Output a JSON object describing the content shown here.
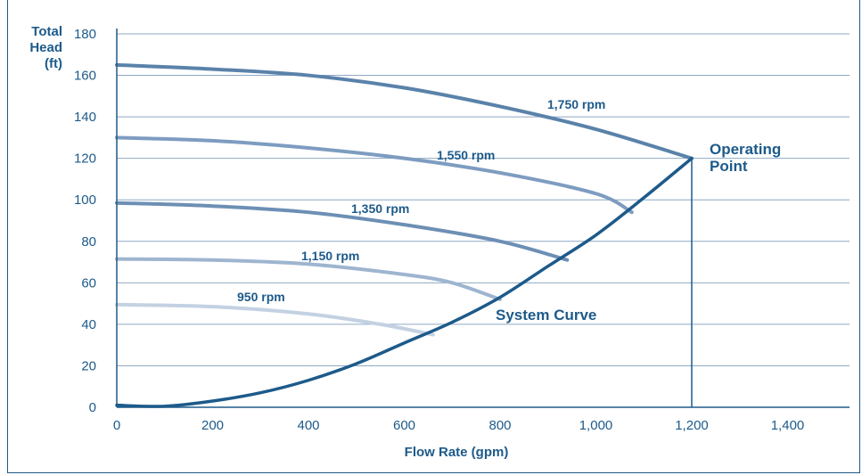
{
  "chart_data": {
    "type": "line",
    "xlabel": "Flow Rate (gpm)",
    "ylabel_lines": [
      "Total",
      "Head",
      "(ft)"
    ],
    "xlim": [
      0,
      1500
    ],
    "ylim": [
      0,
      180
    ],
    "x_ticks": [
      0,
      200,
      400,
      600,
      800,
      1000,
      1200,
      1400
    ],
    "x_tick_labels": [
      "0",
      "200",
      "400",
      "600",
      "800",
      "1,000",
      "1,200",
      "1,400"
    ],
    "y_ticks": [
      0,
      20,
      40,
      60,
      80,
      100,
      120,
      140,
      160,
      180
    ],
    "y_tick_labels": [
      "0",
      "20",
      "40",
      "60",
      "80",
      "100",
      "120",
      "140",
      "160",
      "180"
    ],
    "grid": "horizontal",
    "series": [
      {
        "name": "1,750 rpm",
        "color": "#5a82aa",
        "x": [
          0,
          200,
          400,
          600,
          800,
          1000,
          1200
        ],
        "y": [
          165,
          163,
          160,
          154,
          145,
          134,
          120
        ]
      },
      {
        "name": "1,550 rpm",
        "color": "#7d9cc0",
        "x": [
          0,
          200,
          400,
          600,
          800,
          1000,
          1075
        ],
        "y": [
          130,
          128.5,
          125,
          120,
          113,
          103,
          94
        ]
      },
      {
        "name": "1,350 rpm",
        "color": "#6d8fb4",
        "x": [
          0,
          200,
          400,
          600,
          800,
          940
        ],
        "y": [
          98.5,
          97,
          94,
          88,
          80,
          71
        ]
      },
      {
        "name": "1,150 rpm",
        "color": "#9eb5cf",
        "x": [
          0,
          200,
          400,
          600,
          700,
          800
        ],
        "y": [
          71.5,
          71,
          69,
          64,
          60,
          52
        ]
      },
      {
        "name": "950 rpm",
        "color": "#c3d1e2",
        "x": [
          0,
          200,
          400,
          550,
          660
        ],
        "y": [
          49.5,
          48.5,
          45,
          40,
          35
        ]
      },
      {
        "name": "System Curve",
        "color": "#1d5a8a",
        "x": [
          0,
          100,
          200,
          300,
          400,
          500,
          600,
          700,
          800,
          900,
          1000,
          1100,
          1200
        ],
        "y": [
          1,
          0.5,
          3,
          7,
          13,
          21,
          31,
          41,
          53,
          68,
          83,
          101,
          120
        ]
      }
    ],
    "annotations": [
      {
        "text": "Operating",
        "x": 1200,
        "y": 120
      },
      {
        "text": "Point",
        "x": 1200,
        "y": 120
      }
    ],
    "operating_point": {
      "x": 1200,
      "y": 120
    }
  }
}
